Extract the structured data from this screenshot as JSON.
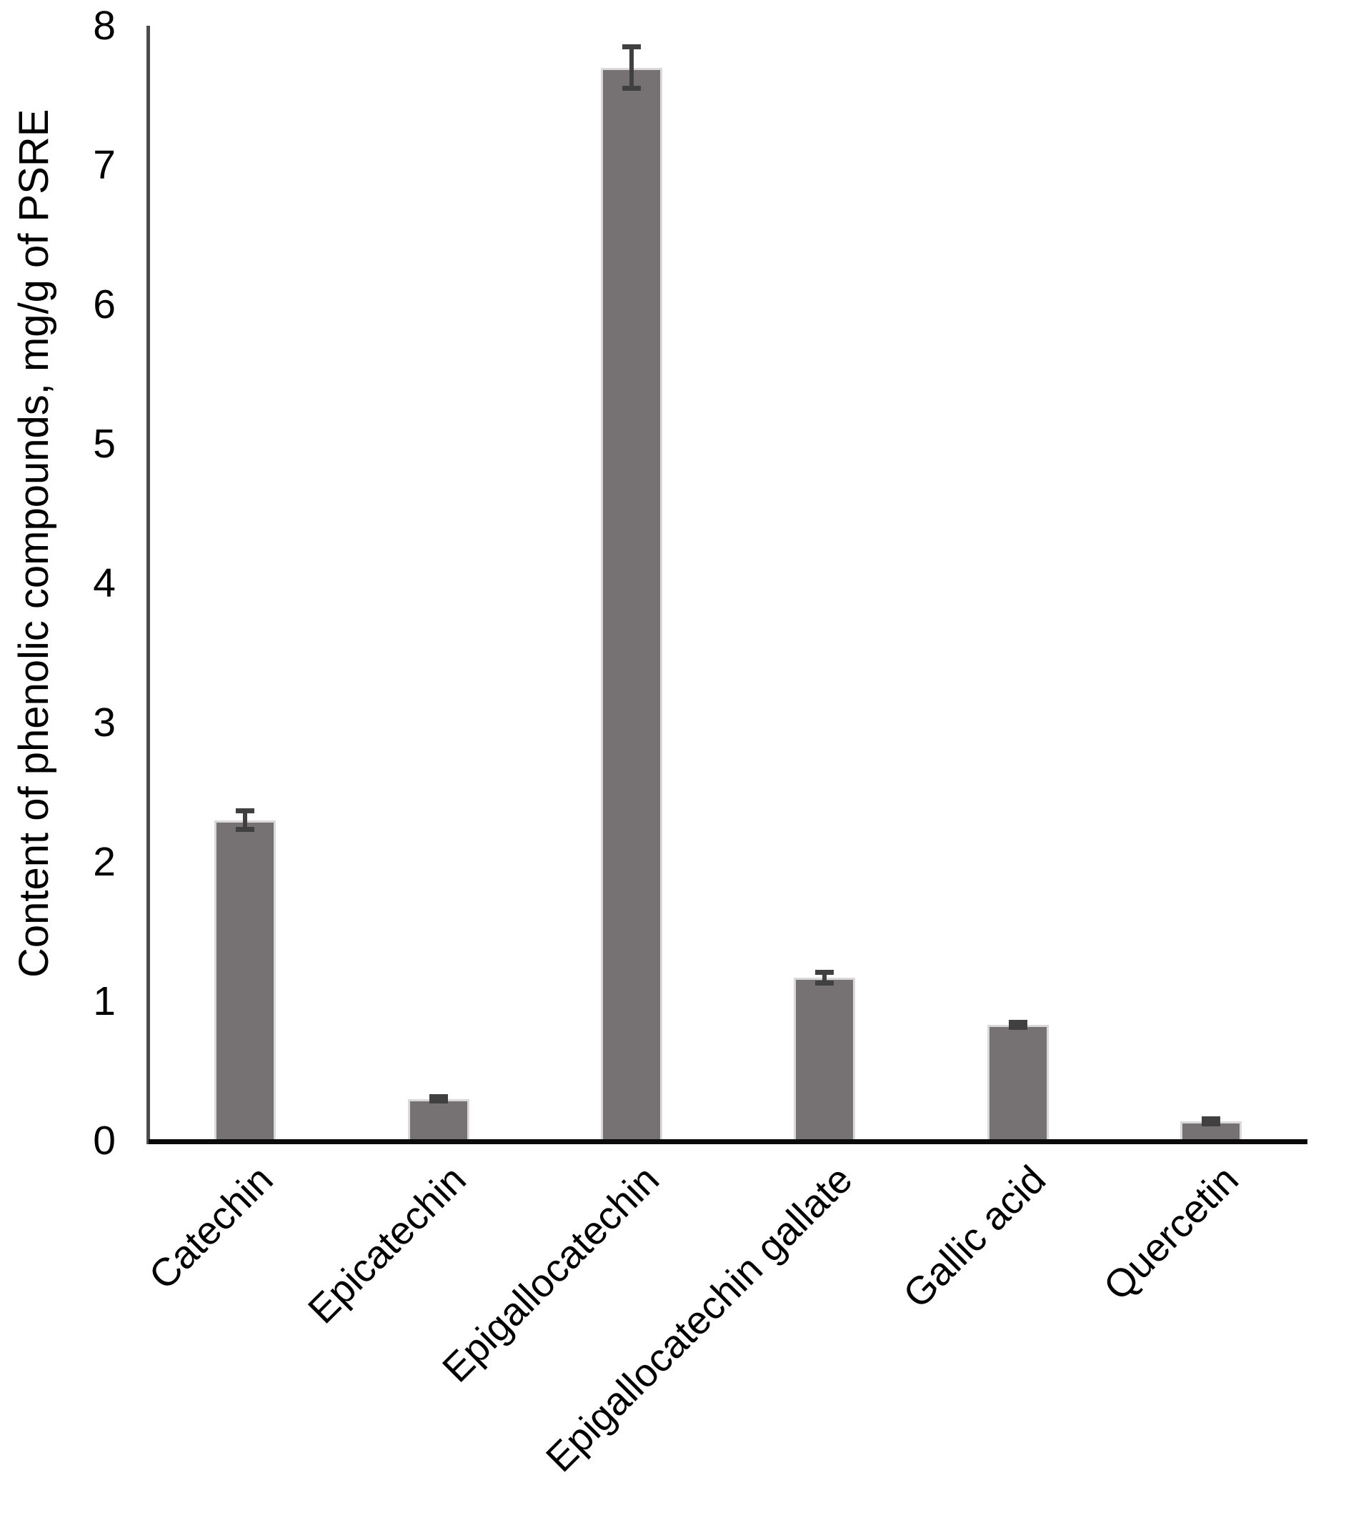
{
  "chart_data": {
    "type": "bar",
    "title": "",
    "xlabel": "",
    "ylabel": "Content of phenolic compounds, mg/g of PSRE",
    "categories": [
      "Catechin",
      "Epicatechin",
      "Epigallocatechin",
      "Epigallocatechin gallate",
      "Gallic acid",
      "Quercetin"
    ],
    "series": [
      {
        "name": "Content of phenolic compounds",
        "values": [
          2.3,
          0.3,
          7.7,
          1.17,
          0.83,
          0.14
        ],
        "errors": [
          0.07,
          0.02,
          0.15,
          0.04,
          0.02,
          0.02
        ]
      }
    ],
    "ylim": [
      0,
      8
    ],
    "yticks": [
      0,
      1,
      2,
      3,
      4,
      5,
      6,
      7,
      8
    ],
    "grid": "off",
    "legend": "none",
    "x_label_rotation_deg": -45,
    "colors": {
      "bar_fill": "#767172",
      "bar_border": "#dad8d9",
      "error_bar": "#404040",
      "y_axis_line": "#4d4d4d",
      "x_axis_line": "#0a0a0a",
      "text": "#000000",
      "background": "#ffffff"
    }
  }
}
